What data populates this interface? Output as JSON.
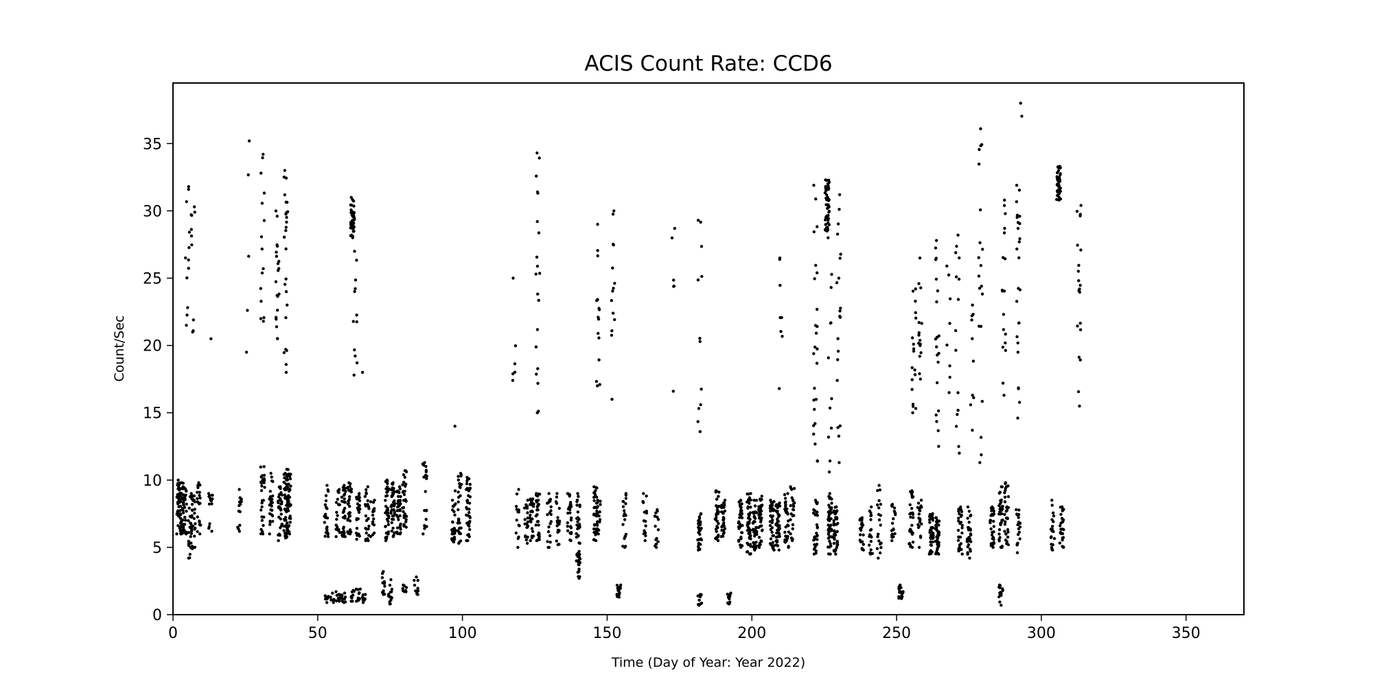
{
  "chart_data": {
    "type": "scatter",
    "title": "ACIS Count Rate: CCD6",
    "xlabel": "Time (Day of Year: Year 2022)",
    "ylabel": "Count/Sec",
    "xlim": [
      0,
      370
    ],
    "ylim": [
      0,
      39.5
    ],
    "xticks": [
      0,
      50,
      100,
      150,
      200,
      250,
      300,
      350
    ],
    "yticks": [
      0,
      5,
      10,
      15,
      20,
      25,
      30,
      35
    ],
    "grid": false,
    "marker_color": "#000000",
    "point_clusters_columns": [
      "day",
      "min_count_per_sec",
      "max_count_per_sec",
      "approx_points"
    ],
    "point_clusters": [
      [
        2,
        6,
        10,
        40
      ],
      [
        3,
        6,
        9.8,
        40
      ],
      [
        4,
        6,
        9.5,
        30
      ],
      [
        6,
        4.2,
        8.8,
        30
      ],
      [
        7,
        5,
        9,
        25
      ],
      [
        9,
        6,
        9.8,
        20
      ],
      [
        13,
        6.2,
        9,
        15
      ],
      [
        23,
        6.2,
        9.3,
        15
      ],
      [
        31,
        6,
        11,
        30
      ],
      [
        34,
        6,
        10.5,
        25
      ],
      [
        37,
        5.5,
        9.5,
        30
      ],
      [
        39,
        5.7,
        10.5,
        45
      ],
      [
        40,
        6,
        10.8,
        45
      ],
      [
        53,
        5.8,
        9.6,
        25
      ],
      [
        57,
        5.8,
        9.3,
        20
      ],
      [
        59,
        5.8,
        9.6,
        30
      ],
      [
        61,
        6,
        9.8,
        30
      ],
      [
        64,
        5.6,
        9,
        25
      ],
      [
        67,
        5.5,
        9.5,
        25
      ],
      [
        69,
        5.8,
        8.5,
        15
      ],
      [
        74,
        5.5,
        10,
        40
      ],
      [
        76,
        5.8,
        9.8,
        40
      ],
      [
        78,
        6,
        9.5,
        35
      ],
      [
        80,
        6.5,
        10.7,
        30
      ],
      [
        87,
        6,
        11.3,
        20
      ],
      [
        97,
        5.4,
        9.2,
        30
      ],
      [
        99,
        5.3,
        10.5,
        30
      ],
      [
        102,
        5.5,
        10.2,
        40
      ],
      [
        119,
        5,
        9.3,
        15
      ],
      [
        122,
        5.3,
        8.5,
        20
      ],
      [
        124,
        5.5,
        8.6,
        25
      ],
      [
        126,
        5.5,
        9,
        30
      ],
      [
        130,
        5,
        9,
        20
      ],
      [
        133,
        5.2,
        9,
        20
      ],
      [
        137,
        5.5,
        9,
        30
      ],
      [
        140,
        5.3,
        9,
        25
      ],
      [
        146,
        5.5,
        9.5,
        30
      ],
      [
        147,
        6,
        8.5,
        20
      ],
      [
        156,
        5,
        9,
        20
      ],
      [
        163,
        5.5,
        9,
        15
      ],
      [
        167,
        5,
        7.8,
        15
      ],
      [
        182,
        4.8,
        7.5,
        30
      ],
      [
        188,
        5.5,
        9.2,
        35
      ],
      [
        190,
        5.8,
        8.5,
        30
      ],
      [
        196,
        5,
        8.5,
        35
      ],
      [
        199,
        4.5,
        9,
        45
      ],
      [
        201,
        4.8,
        8.5,
        40
      ],
      [
        203,
        5,
        8.8,
        35
      ],
      [
        207,
        4.8,
        8.5,
        40
      ],
      [
        209,
        4.8,
        8.3,
        40
      ],
      [
        212,
        5,
        9,
        30
      ],
      [
        214,
        5.5,
        9.5,
        25
      ],
      [
        222,
        4.5,
        8.5,
        30
      ],
      [
        227,
        4.5,
        9,
        45
      ],
      [
        229,
        4.5,
        8,
        40
      ],
      [
        238,
        4.8,
        7.2,
        20
      ],
      [
        241,
        4.5,
        8,
        20
      ],
      [
        244,
        4.2,
        9.6,
        20
      ],
      [
        249,
        5.5,
        8.2,
        20
      ],
      [
        255,
        5,
        9.2,
        30
      ],
      [
        258,
        5,
        8.5,
        20
      ],
      [
        262,
        4.5,
        7.5,
        40
      ],
      [
        264,
        4.5,
        7.2,
        40
      ],
      [
        272,
        4.5,
        8,
        30
      ],
      [
        275,
        4.2,
        8,
        30
      ],
      [
        283,
        5,
        8,
        30
      ],
      [
        286,
        5,
        9.5,
        35
      ],
      [
        288,
        5.2,
        9.8,
        30
      ],
      [
        292,
        4.6,
        7.8,
        20
      ],
      [
        304,
        4.8,
        8.5,
        20
      ],
      [
        307,
        5,
        8,
        30
      ],
      [
        53,
        0.9,
        1.4,
        10
      ],
      [
        55,
        0.9,
        1.6,
        10
      ],
      [
        57,
        1,
        1.7,
        10
      ],
      [
        59,
        0.9,
        1.6,
        10
      ],
      [
        62,
        1,
        1.8,
        10
      ],
      [
        64,
        1,
        1.9,
        12
      ],
      [
        66,
        0.9,
        1.5,
        8
      ],
      [
        73,
        1.5,
        3.2,
        14
      ],
      [
        75,
        0.8,
        2.6,
        14
      ],
      [
        80,
        1.7,
        2.2,
        8
      ],
      [
        84,
        1.5,
        2.8,
        12
      ],
      [
        140,
        2.7,
        4.7,
        25
      ],
      [
        154,
        1.3,
        2.2,
        15
      ],
      [
        182,
        0.7,
        1.5,
        12
      ],
      [
        192,
        0.8,
        1.6,
        12
      ],
      [
        251,
        1.2,
        2.2,
        12
      ],
      [
        252,
        1.3,
        2,
        10
      ],
      [
        286,
        0.7,
        2.2,
        15
      ],
      [
        62,
        28,
        31,
        40
      ],
      [
        226,
        28.5,
        32.3,
        50
      ],
      [
        306,
        30.8,
        33.3,
        40
      ],
      [
        5,
        21.5,
        31.8,
        12
      ],
      [
        7,
        21,
        30.3,
        10
      ],
      [
        13,
        20.5,
        20.5,
        1
      ],
      [
        26,
        19.5,
        35.2,
        5
      ],
      [
        31,
        21.8,
        34.2,
        15
      ],
      [
        36,
        20.5,
        30,
        20
      ],
      [
        39,
        18,
        33,
        25
      ],
      [
        63,
        17.8,
        27,
        12
      ],
      [
        65,
        18,
        18,
        1
      ],
      [
        97,
        14,
        14,
        1
      ],
      [
        118,
        17.4,
        25,
        6
      ],
      [
        126,
        15,
        34.3,
        20
      ],
      [
        147,
        17,
        29,
        15
      ],
      [
        152,
        16,
        30,
        14
      ],
      [
        173,
        16.6,
        28.7,
        6
      ],
      [
        182,
        13.6,
        29.3,
        12
      ],
      [
        210,
        16.8,
        26.5,
        8
      ],
      [
        222,
        11.4,
        31.9,
        25
      ],
      [
        227,
        10.6,
        28,
        12
      ],
      [
        230,
        11.3,
        31.2,
        20
      ],
      [
        256,
        15,
        24.2,
        18
      ],
      [
        258,
        17.5,
        26.5,
        15
      ],
      [
        264,
        12.5,
        27.8,
        20
      ],
      [
        268,
        16.5,
        25.9,
        8
      ],
      [
        271,
        12,
        28.2,
        15
      ],
      [
        276,
        13.7,
        23,
        10
      ],
      [
        279,
        11.3,
        36.1,
        20
      ],
      [
        287,
        16.3,
        30.8,
        18
      ],
      [
        292,
        14.6,
        31.9,
        25
      ],
      [
        293,
        29.6,
        38,
        3
      ],
      [
        313,
        15.5,
        30.4,
        20
      ]
    ]
  }
}
